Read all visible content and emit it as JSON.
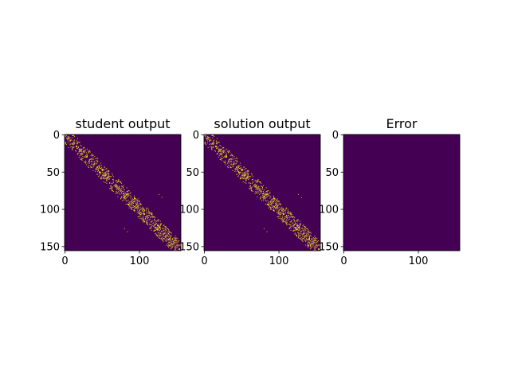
{
  "chart_data": [
    {
      "type": "heatmap",
      "title": "student output",
      "matrix_size": 156,
      "xlim": [
        0,
        155
      ],
      "ylim": [
        155,
        0
      ],
      "xticks": [
        0,
        100
      ],
      "yticks": [
        0,
        50,
        100,
        150
      ],
      "value_range": [
        0,
        1
      ],
      "pattern": "sparse symmetric band along the main diagonal",
      "band_half_width": 12,
      "density_near_diagonal": 0.32,
      "isolated_points": [
        [
          84,
          130
        ],
        [
          130,
          84
        ],
        [
          18,
          25
        ],
        [
          25,
          18
        ],
        [
          126,
          80
        ],
        [
          80,
          126
        ]
      ],
      "seed": 7
    },
    {
      "type": "heatmap",
      "title": "solution output",
      "matrix_size": 156,
      "xlim": [
        0,
        155
      ],
      "ylim": [
        155,
        0
      ],
      "xticks": [
        0,
        100
      ],
      "yticks": [
        0,
        50,
        100,
        150
      ],
      "value_range": [
        0,
        1
      ],
      "pattern": "sparse symmetric band along the main diagonal",
      "band_half_width": 12,
      "density_near_diagonal": 0.32,
      "isolated_points": [
        [
          84,
          130
        ],
        [
          130,
          84
        ],
        [
          18,
          25
        ],
        [
          25,
          18
        ],
        [
          126,
          80
        ],
        [
          80,
          126
        ]
      ],
      "seed": 7
    },
    {
      "type": "heatmap",
      "title": "Error",
      "matrix_size": 156,
      "xlim": [
        0,
        155
      ],
      "ylim": [
        155,
        0
      ],
      "xticks": [
        0,
        100
      ],
      "yticks": [
        0,
        50,
        100,
        150
      ],
      "value_range": [
        0,
        1
      ],
      "pattern": "all zero",
      "band_half_width": 0,
      "density_near_diagonal": 0,
      "isolated_points": [],
      "seed": 7
    }
  ],
  "colors": {
    "background": "#440154",
    "foreground": "#fde725",
    "axis": "#000000"
  }
}
